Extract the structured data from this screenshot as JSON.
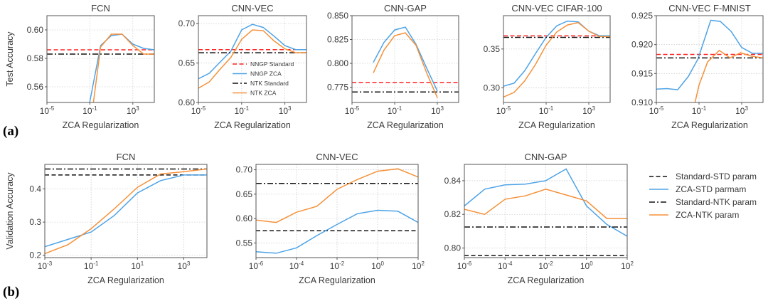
{
  "figure": {
    "panel_labels": [
      "(a)",
      "(b)"
    ],
    "colors": {
      "blue": "#4ea3e6",
      "orange": "#f5913a",
      "red": "#ff2424",
      "black": "#111111"
    }
  },
  "chart_data": [
    {
      "type": "line",
      "row": "a",
      "title": "FCN",
      "xlabel": "ZCA Regularization",
      "ylabel": "Test Accuracy",
      "xscale": "log",
      "xlim_exp": [
        -5,
        5
      ],
      "ylim": [
        0.549,
        0.61
      ],
      "xticks_exp": [
        -5,
        -1,
        3
      ],
      "yticks": [
        0.56,
        0.58,
        0.6
      ],
      "ytick_labels": [
        "0.56",
        "0.58",
        "0.60"
      ],
      "grid": true,
      "series": [
        {
          "name": "NNGP Standard",
          "style": "dashed",
          "color": "#ff2424",
          "hline": 0.586
        },
        {
          "name": "NNGP ZCA",
          "style": "solid",
          "color": "#4ea3e6",
          "x_exp": [
            -1.5,
            0,
            1,
            2,
            3,
            4,
            5
          ],
          "y": [
            0.53,
            0.589,
            0.596,
            0.597,
            0.59,
            0.587,
            0.586
          ]
        },
        {
          "name": "NTK Standard",
          "style": "dashdot",
          "color": "#111111",
          "hline": 0.583
        },
        {
          "name": "NTK ZCA",
          "style": "solid",
          "color": "#f5913a",
          "x_exp": [
            -1,
            0,
            1,
            2,
            3,
            4,
            5
          ],
          "y": [
            0.53,
            0.588,
            0.597,
            0.597,
            0.589,
            0.583,
            0.583
          ]
        }
      ]
    },
    {
      "type": "line",
      "row": "a",
      "title": "CNN-VEC",
      "xlabel": "ZCA Regularization",
      "xscale": "log",
      "xlim_exp": [
        -5,
        5
      ],
      "ylim": [
        0.6,
        0.71
      ],
      "xticks_exp": [
        -5,
        -1,
        3
      ],
      "yticks": [
        0.6,
        0.65,
        0.7
      ],
      "ytick_labels": [
        "0.60",
        "0.65",
        "0.70"
      ],
      "grid": true,
      "legend": {
        "placement": "center-right",
        "entries": [
          "NNGP Standard",
          "NNGP ZCA",
          "NTK Standard",
          "NTK ZCA"
        ]
      },
      "series": [
        {
          "name": "NNGP Standard",
          "style": "dashed",
          "color": "#ff2424",
          "hline": 0.667
        },
        {
          "name": "NNGP ZCA",
          "style": "solid",
          "color": "#4ea3e6",
          "x_exp": [
            -5,
            -4,
            -3,
            -2,
            -1,
            0,
            1,
            2,
            3,
            4,
            5
          ],
          "y": [
            0.63,
            0.637,
            0.651,
            0.665,
            0.692,
            0.699,
            0.695,
            0.684,
            0.672,
            0.667,
            0.667
          ]
        },
        {
          "name": "NTK Standard",
          "style": "dashdot",
          "color": "#111111",
          "hline": 0.663
        },
        {
          "name": "NTK ZCA",
          "style": "solid",
          "color": "#f5913a",
          "x_exp": [
            -5,
            -4,
            -3,
            -2,
            -1,
            0,
            1,
            2,
            3,
            4,
            5
          ],
          "y": [
            0.618,
            0.626,
            0.642,
            0.657,
            0.68,
            0.692,
            0.691,
            0.678,
            0.668,
            0.663,
            0.663
          ]
        }
      ]
    },
    {
      "type": "line",
      "row": "a",
      "title": "CNN-GAP",
      "xlabel": "ZCA Regularization",
      "xscale": "log",
      "xlim_exp": [
        -5,
        5
      ],
      "ylim": [
        0.759,
        0.85
      ],
      "xticks_exp": [
        -5,
        -1,
        3
      ],
      "yticks": [
        0.775,
        0.8,
        0.825,
        0.85
      ],
      "ytick_labels": [
        "0.775",
        "0.800",
        "0.825",
        "0.850"
      ],
      "grid": true,
      "series": [
        {
          "name": "NNGP Standard",
          "style": "dashed",
          "color": "#ff2424",
          "hline": 0.78
        },
        {
          "name": "NNGP ZCA",
          "style": "solid",
          "color": "#4ea3e6",
          "x_exp": [
            -3,
            -2,
            -1,
            0,
            1,
            2,
            3
          ],
          "y": [
            0.801,
            0.822,
            0.835,
            0.838,
            0.82,
            0.795,
            0.771
          ]
        },
        {
          "name": "NTK Standard",
          "style": "dashdot",
          "color": "#111111",
          "hline": 0.77
        },
        {
          "name": "NTK ZCA",
          "style": "solid",
          "color": "#f5913a",
          "x_exp": [
            -3,
            -2,
            -1,
            0,
            1,
            2,
            3
          ],
          "y": [
            0.79,
            0.814,
            0.829,
            0.832,
            0.819,
            0.79,
            0.764
          ]
        }
      ]
    },
    {
      "type": "line",
      "row": "a",
      "title": "CNN-VEC CIFAR-100",
      "xlabel": "ZCA Regularization",
      "xscale": "log",
      "xlim_exp": [
        -5,
        5
      ],
      "ylim": [
        0.281,
        0.393
      ],
      "xticks_exp": [
        -5,
        -1,
        3
      ],
      "yticks": [
        0.3,
        0.35
      ],
      "ytick_labels": [
        "0.30",
        "0.35"
      ],
      "grid": true,
      "series": [
        {
          "name": "NNGP Standard",
          "style": "dashed",
          "color": "#ff2424",
          "hline": 0.367
        },
        {
          "name": "NNGP ZCA",
          "style": "solid",
          "color": "#4ea3e6",
          "x_exp": [
            -5,
            -4,
            -3,
            -2,
            -1,
            0,
            1,
            2,
            3,
            4,
            5
          ],
          "y": [
            0.302,
            0.306,
            0.322,
            0.344,
            0.365,
            0.38,
            0.386,
            0.385,
            0.373,
            0.367,
            0.367
          ]
        },
        {
          "name": "NTK Standard",
          "style": "dashdot",
          "color": "#111111",
          "hline": 0.365
        },
        {
          "name": "NTK ZCA",
          "style": "solid",
          "color": "#f5913a",
          "x_exp": [
            -5,
            -4,
            -3,
            -2,
            -1,
            0,
            1,
            2,
            3,
            4,
            5
          ],
          "y": [
            0.288,
            0.294,
            0.309,
            0.33,
            0.355,
            0.372,
            0.381,
            0.384,
            0.373,
            0.366,
            0.366
          ]
        }
      ]
    },
    {
      "type": "line",
      "row": "a",
      "title": "CNN-VEC F-MNIST",
      "xlabel": "ZCA Regularization",
      "xscale": "log",
      "xlim_exp": [
        -5,
        5
      ],
      "ylim": [
        0.91,
        0.925
      ],
      "xticks_exp": [
        -5,
        -1,
        3
      ],
      "yticks": [
        0.91,
        0.915,
        0.92,
        0.925
      ],
      "ytick_labels": [
        "0.910",
        "0.915",
        "0.920",
        "0.925"
      ],
      "grid": true,
      "series": [
        {
          "name": "NNGP Standard",
          "style": "dashed",
          "color": "#ff2424",
          "hline": 0.9183
        },
        {
          "name": "NNGP ZCA",
          "style": "solid",
          "color": "#4ea3e6",
          "x_exp": [
            -5,
            -4,
            -3,
            -2,
            -1.1,
            0.1,
            1,
            2,
            3,
            4,
            5
          ],
          "y": [
            0.9123,
            0.9124,
            0.9122,
            0.9145,
            0.9175,
            0.9242,
            0.924,
            0.9223,
            0.9195,
            0.9185,
            0.9185
          ]
        },
        {
          "name": "NTK Standard",
          "style": "dashdot",
          "color": "#111111",
          "hline": 0.9177
        },
        {
          "name": "NTK ZCA",
          "style": "solid",
          "color": "#f5913a",
          "x_exp": [
            -2,
            -1,
            -0.2,
            0.9,
            1.9,
            2.9,
            3.9,
            5
          ],
          "y": [
            0.905,
            0.913,
            0.917,
            0.919,
            0.9177,
            0.9186,
            0.918,
            0.9177
          ]
        }
      ]
    },
    {
      "type": "line",
      "row": "b",
      "title": "FCN",
      "xlabel": "ZCA Regularization",
      "ylabel": "Validation Accuracy",
      "xscale": "log",
      "xlim_exp": [
        -3,
        4
      ],
      "ylim": [
        0.193,
        0.474
      ],
      "xticks_exp": [
        -3,
        -1,
        1,
        3
      ],
      "yticks": [
        0.2,
        0.3,
        0.4
      ],
      "ytick_labels": [
        "0.2",
        "0.3",
        "0.4"
      ],
      "grid": true,
      "series": [
        {
          "name": "Standard-STD param",
          "style": "dashed",
          "color": "#111111",
          "hline": 0.442
        },
        {
          "name": "ZCA-STD parmam",
          "style": "solid",
          "color": "#4ea3e6",
          "x_exp": [
            -3,
            -2,
            -1,
            0,
            1,
            2,
            3,
            4
          ],
          "y": [
            0.226,
            0.248,
            0.27,
            0.32,
            0.388,
            0.425,
            0.442,
            0.442
          ]
        },
        {
          "name": "Standard-NTK param",
          "style": "dashdot",
          "color": "#111111",
          "hline": 0.46
        },
        {
          "name": "ZCA-NTK param",
          "style": "solid",
          "color": "#f5913a",
          "x_exp": [
            -3,
            -2,
            -1,
            0,
            1,
            2,
            3,
            4
          ],
          "y": [
            0.205,
            0.232,
            0.28,
            0.34,
            0.405,
            0.445,
            0.452,
            0.46
          ]
        }
      ]
    },
    {
      "type": "line",
      "row": "b",
      "title": "CNN-VEC",
      "xlabel": "ZCA Regularization",
      "xscale": "log",
      "xlim_exp": [
        -6,
        2
      ],
      "ylim": [
        0.52,
        0.711
      ],
      "xticks_exp": [
        -6,
        -4,
        -2,
        0,
        2
      ],
      "yticks": [
        0.55,
        0.6,
        0.65,
        0.7
      ],
      "ytick_labels": [
        "0.55",
        "0.60",
        "0.65",
        "0.70"
      ],
      "grid": true,
      "series": [
        {
          "name": "Standard-STD param",
          "style": "dashed",
          "color": "#111111",
          "hline": 0.575
        },
        {
          "name": "ZCA-STD parmam",
          "style": "solid",
          "color": "#4ea3e6",
          "x_exp": [
            -6,
            -5,
            -4,
            -3,
            -2,
            -1,
            0,
            1,
            2
          ],
          "y": [
            0.532,
            0.529,
            0.54,
            0.565,
            0.588,
            0.61,
            0.617,
            0.615,
            0.592
          ]
        },
        {
          "name": "Standard-NTK param",
          "style": "dashdot",
          "color": "#111111",
          "hline": 0.672
        },
        {
          "name": "ZCA-NTK param",
          "style": "solid",
          "color": "#f5913a",
          "x_exp": [
            -6,
            -5,
            -4,
            -3,
            -2,
            -1,
            0,
            1,
            2
          ],
          "y": [
            0.597,
            0.592,
            0.613,
            0.625,
            0.66,
            0.68,
            0.697,
            0.702,
            0.685
          ]
        }
      ]
    },
    {
      "type": "line",
      "row": "b",
      "title": "CNN-GAP",
      "xlabel": "ZCA Regularization",
      "xscale": "log",
      "xlim_exp": [
        -6,
        2
      ],
      "ylim": [
        0.7943,
        0.8497
      ],
      "xticks_exp": [
        -6,
        -4,
        -2,
        0,
        2
      ],
      "yticks": [
        0.8,
        0.82,
        0.84
      ],
      "ytick_labels": [
        "0.80",
        "0.82",
        "0.84"
      ],
      "grid": true,
      "legend": {
        "placement": "outside-right",
        "entries": [
          "Standard-STD param",
          "ZCA-STD parmam",
          "Standard-NTK param",
          "ZCA-NTK param"
        ]
      },
      "series": [
        {
          "name": "Standard-STD param",
          "style": "dashed",
          "color": "#111111",
          "hline": 0.7955
        },
        {
          "name": "ZCA-STD parmam",
          "style": "solid",
          "color": "#4ea3e6",
          "x_exp": [
            -6,
            -5,
            -4,
            -3,
            -2,
            -1,
            0,
            1,
            2
          ],
          "y": [
            0.825,
            0.835,
            0.8375,
            0.838,
            0.84,
            0.847,
            0.825,
            0.814,
            0.807
          ]
        },
        {
          "name": "Standard-NTK param",
          "style": "dashdot",
          "color": "#111111",
          "hline": 0.8125
        },
        {
          "name": "ZCA-NTK param",
          "style": "solid",
          "color": "#f5913a",
          "x_exp": [
            -6,
            -5,
            -4,
            -3,
            -2,
            -1,
            0,
            1,
            2
          ],
          "y": [
            0.823,
            0.82,
            0.829,
            0.831,
            0.835,
            0.8315,
            0.828,
            0.8175,
            0.8175
          ]
        }
      ]
    }
  ]
}
